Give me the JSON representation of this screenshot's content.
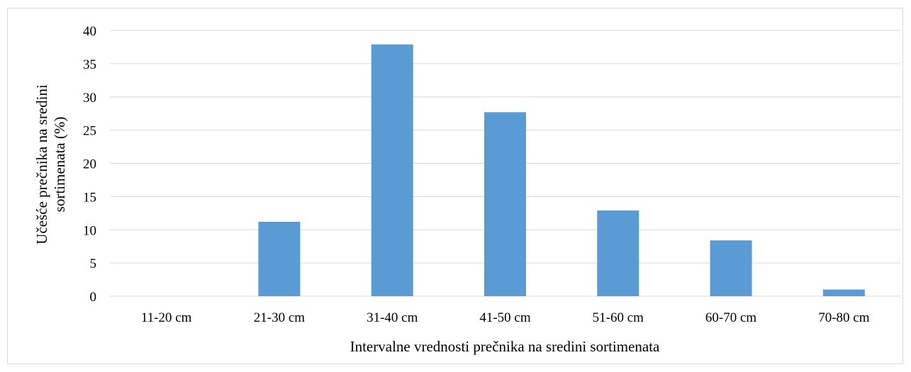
{
  "chart_data": {
    "type": "bar",
    "categories": [
      "11-20 cm",
      "21-30 cm",
      "31-40 cm",
      "41-50 cm",
      "51-60 cm",
      "60-70 cm",
      "70-80 cm"
    ],
    "values": [
      0,
      11.2,
      37.9,
      27.7,
      12.9,
      8.4,
      1.0
    ],
    "title": "",
    "xlabel": "Intervalne vrednosti prečnika na sredini sortimenata",
    "ylabel_lines": [
      "Učešće prečnika na sredini",
      "sortimenata (%)"
    ],
    "ylim": [
      0,
      40
    ],
    "yticks": [
      0,
      5,
      10,
      15,
      20,
      25,
      30,
      35,
      40
    ],
    "grid": true,
    "legend": "none",
    "bar_color": "#5b9bd5",
    "grid_color": "#d9d9d9"
  }
}
